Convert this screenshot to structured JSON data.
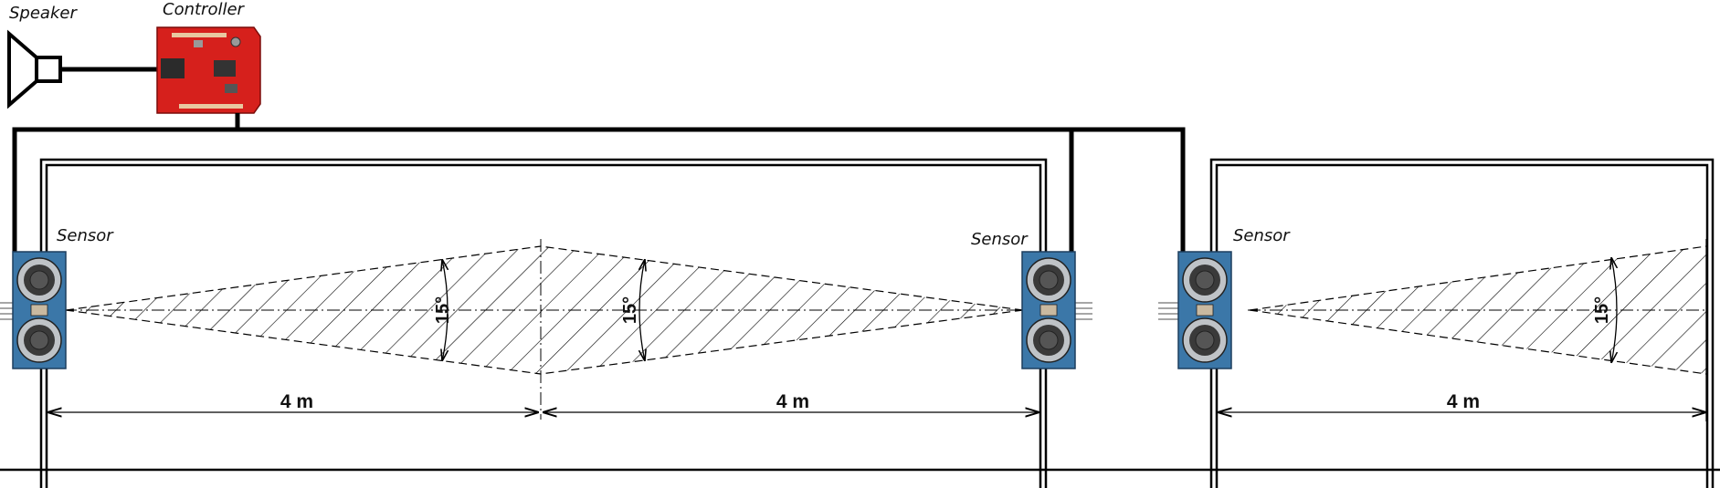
{
  "labels": {
    "speaker": "Speaker",
    "controller": "Controller",
    "sensor_left": "Sensor",
    "sensor_middle": "Sensor",
    "sensor_right": "Sensor"
  },
  "dimensions": {
    "left_span": "4 m",
    "middle_span": "4 m",
    "right_span": "4 m"
  },
  "angles": {
    "left_beam": "15°",
    "middle_beam": "15°",
    "right_beam": "15°"
  },
  "colors": {
    "line": "#000000",
    "controller_board": "#d6201c",
    "sensor_board": "#3b77a8",
    "transducer": "#3a3a3a"
  },
  "icons": {
    "speaker": "speaker-icon",
    "controller": "controller-board-icon",
    "sensor": "ultrasonic-sensor-icon"
  }
}
